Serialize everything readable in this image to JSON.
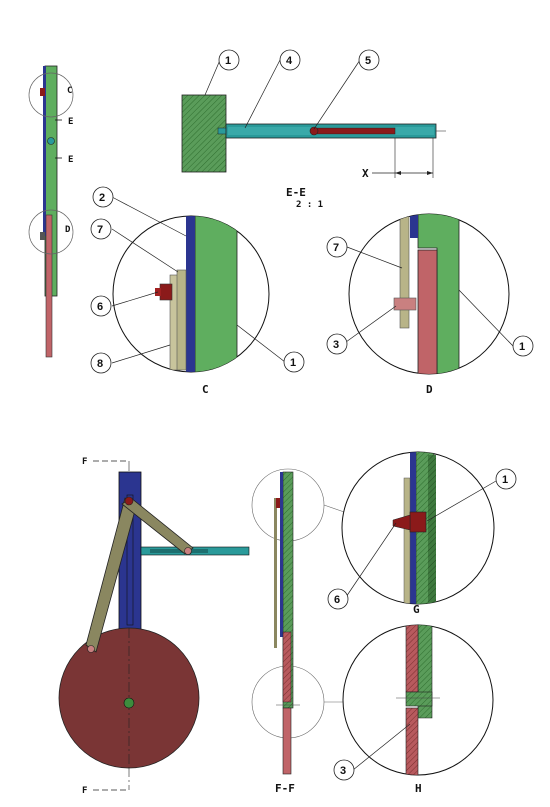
{
  "colors": {
    "green": "#5fae5f",
    "green_dark": "#3f8a3f",
    "blue": "#2b3590",
    "teal": "#2a9a9a",
    "red": "#c06468",
    "dark_red": "#8b1a1a",
    "olive": "#8a8760",
    "wheel": "#7a3535",
    "hatch_green": "#2f6e2f"
  },
  "bubbles": {
    "top_1": "1",
    "top_4": "4",
    "top_5": "5",
    "c_2": "2",
    "c_7": "7",
    "c_6": "6",
    "c_8": "8",
    "c_1": "1",
    "d_7": "7",
    "d_3": "3",
    "d_1": "1",
    "g_1": "1",
    "g_6": "6",
    "h_3": "3"
  },
  "labels": {
    "section_ee": "E-E",
    "scale": "2 : 1",
    "dim_x": "X",
    "detail_c": "C",
    "detail_d": "D",
    "detail_g": "G",
    "detail_h": "H",
    "section_ff": "F-F",
    "cut_f_top": "F",
    "cut_f_bottom": "F",
    "cut_e_top": "E",
    "cut_e_bottom": "E",
    "marker_c": "C",
    "marker_d": "D"
  }
}
